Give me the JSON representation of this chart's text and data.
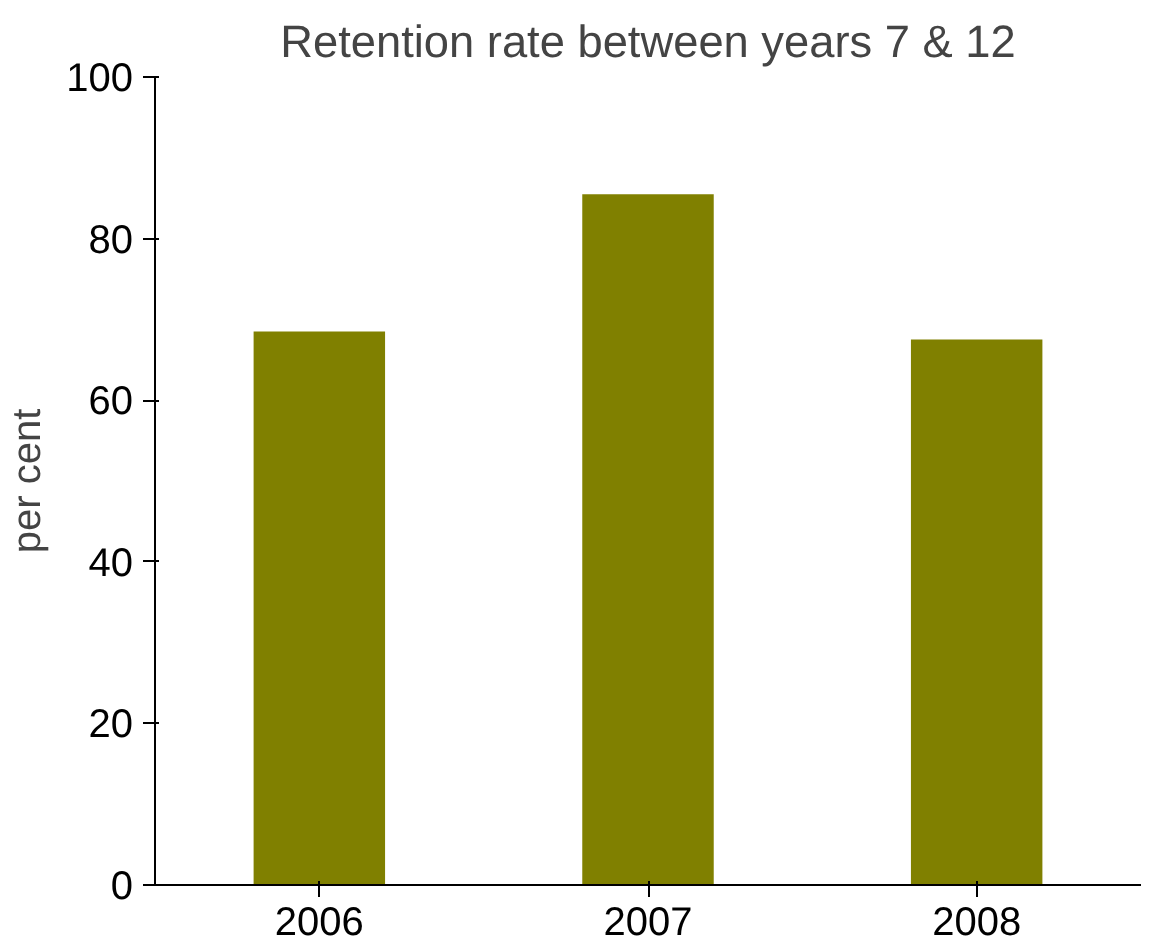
{
  "chart_data": {
    "type": "bar",
    "title": "Retention rate between years 7 & 12",
    "ylabel": "per cent",
    "categories": [
      "2006",
      "2007",
      "2008"
    ],
    "values": [
      68.5,
      85.5,
      67.5
    ],
    "color": "#808000",
    "ylim": [
      0,
      100
    ],
    "yticks": [
      0,
      20,
      40,
      60,
      80,
      100
    ],
    "grid": false
  }
}
